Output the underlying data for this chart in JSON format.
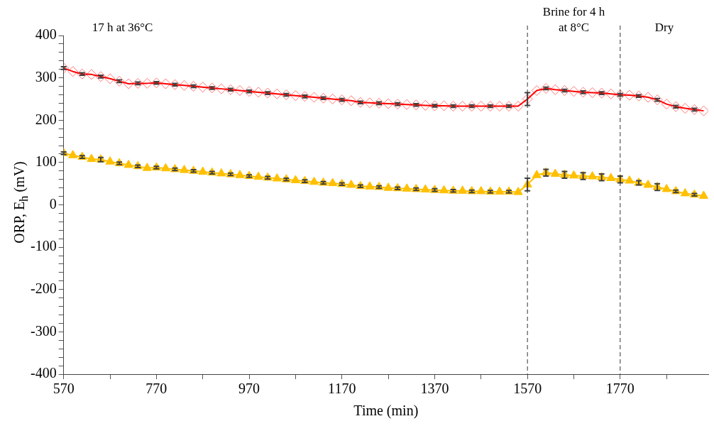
{
  "chart_data": {
    "type": "line",
    "xlabel": "Time (min)",
    "ylabel": "ORP, E$_{h}$  (mV)",
    "x": [
      570,
      590,
      610,
      630,
      650,
      670,
      690,
      710,
      730,
      750,
      770,
      790,
      810,
      830,
      850,
      870,
      890,
      910,
      930,
      950,
      970,
      990,
      1010,
      1030,
      1050,
      1070,
      1090,
      1110,
      1130,
      1150,
      1170,
      1190,
      1210,
      1230,
      1250,
      1270,
      1290,
      1310,
      1330,
      1350,
      1370,
      1390,
      1410,
      1430,
      1450,
      1470,
      1490,
      1510,
      1530,
      1550,
      1570,
      1590,
      1610,
      1630,
      1650,
      1670,
      1690,
      1710,
      1730,
      1750,
      1770,
      1790,
      1810,
      1830,
      1850,
      1870,
      1890,
      1910,
      1930,
      1950
    ],
    "series": [
      {
        "color": "#ff0000",
        "marker": "diamond",
        "values": [
          323,
          315,
          309,
          308,
          303,
          298,
          292,
          286,
          287,
          287,
          288,
          286,
          284,
          282,
          280,
          278,
          276,
          274,
          272,
          270,
          268,
          266,
          264,
          262,
          260,
          258,
          256,
          254,
          252,
          250,
          248,
          246,
          242,
          241,
          240,
          239,
          238,
          237,
          236,
          235,
          234,
          234,
          233,
          233,
          233,
          233,
          233,
          233,
          233,
          233,
          250,
          270,
          275,
          272,
          270,
          268,
          266,
          265,
          264,
          262,
          260,
          259,
          257,
          254,
          248,
          238,
          232,
          228,
          225,
          222
        ],
        "errors": [
          3,
          null,
          3,
          null,
          3,
          null,
          3,
          null,
          3,
          null,
          3,
          null,
          3,
          null,
          3,
          null,
          3,
          null,
          3,
          null,
          3,
          null,
          3,
          null,
          3,
          null,
          3,
          null,
          3,
          null,
          3,
          null,
          3,
          null,
          3,
          null,
          3,
          null,
          3,
          null,
          3,
          null,
          3,
          null,
          3,
          null,
          3,
          null,
          3,
          null,
          15,
          null,
          3,
          null,
          3,
          null,
          3,
          null,
          3,
          null,
          3,
          null,
          3,
          null,
          3,
          null,
          3,
          null,
          3,
          null
        ]
      },
      {
        "color": "#ffc000",
        "marker": "triangle",
        "values": [
          122,
          117,
          113,
          108,
          107,
          102,
          98,
          94,
          91,
          87,
          88,
          86,
          84,
          82,
          80,
          78,
          76,
          74,
          72,
          70,
          68,
          66,
          64,
          62,
          60,
          58,
          56,
          54,
          52,
          51,
          49,
          47,
          44,
          43,
          42,
          40,
          39,
          38,
          37,
          36,
          35,
          34,
          33,
          33,
          32,
          32,
          31,
          31,
          31,
          30,
          48,
          70,
          76,
          73,
          71,
          69,
          68,
          67,
          65,
          63,
          60,
          57,
          52,
          47,
          42,
          37,
          32,
          27,
          24,
          21
        ],
        "errors": [
          3,
          null,
          3,
          null,
          5,
          null,
          3,
          null,
          3,
          null,
          3,
          null,
          3,
          null,
          3,
          null,
          3,
          null,
          3,
          null,
          3,
          null,
          3,
          null,
          3,
          null,
          3,
          null,
          3,
          null,
          3,
          null,
          3,
          null,
          3,
          null,
          3,
          null,
          3,
          null,
          3,
          null,
          3,
          null,
          3,
          null,
          3,
          null,
          3,
          null,
          15,
          null,
          8,
          null,
          8,
          null,
          8,
          null,
          8,
          null,
          8,
          null,
          5,
          null,
          8,
          null,
          3,
          null,
          3,
          null
        ]
      }
    ],
    "xlim": [
      570,
      1960
    ],
    "xticks": [
      570,
      {
        "value": 670,
        "label": null
      },
      770,
      {
        "value": 870,
        "label": null
      },
      970,
      {
        "value": 1070,
        "label": null
      },
      1170,
      {
        "value": 1270,
        "label": null
      },
      1370,
      {
        "value": 1470,
        "label": null
      },
      1570,
      {
        "value": 1670,
        "label": null
      },
      1770,
      {
        "value": 1870,
        "label": null
      }
    ],
    "ylim": [
      -400,
      400
    ],
    "yticks": [
      -400,
      {
        "value": -380,
        "label": null
      },
      {
        "value": -360,
        "label": null
      },
      {
        "value": -340,
        "label": null
      },
      {
        "value": -320,
        "label": null
      },
      -300,
      {
        "value": -280,
        "label": null
      },
      {
        "value": -260,
        "label": null
      },
      {
        "value": -240,
        "label": null
      },
      {
        "value": -220,
        "label": null
      },
      -200,
      {
        "value": -180,
        "label": null
      },
      {
        "value": -160,
        "label": null
      },
      {
        "value": -140,
        "label": null
      },
      {
        "value": -120,
        "label": null
      },
      -100,
      {
        "value": -80,
        "label": null
      },
      {
        "value": -60,
        "label": null
      },
      {
        "value": -40,
        "label": null
      },
      {
        "value": -20,
        "label": null
      },
      0,
      {
        "value": 20,
        "label": null
      },
      {
        "value": 40,
        "label": null
      },
      {
        "value": 60,
        "label": null
      },
      {
        "value": 80,
        "label": null
      },
      100,
      {
        "value": 120,
        "label": null
      },
      {
        "value": 140,
        "label": null
      },
      {
        "value": 160,
        "label": null
      },
      {
        "value": 180,
        "label": null
      },
      200,
      {
        "value": 220,
        "label": null
      },
      {
        "value": 240,
        "label": null
      },
      {
        "value": 260,
        "label": null
      },
      {
        "value": 280,
        "label": null
      },
      300,
      {
        "value": 320,
        "label": null
      },
      {
        "value": 340,
        "label": null
      },
      {
        "value": 360,
        "label": null
      },
      {
        "value": 380,
        "label": null
      },
      400
    ],
    "grid": false,
    "line_style": "solid",
    "ref_lines": [
      {
        "axis": "x",
        "value": 1570,
        "color": "#333333",
        "line_style": "dashed"
      },
      {
        "axis": "x",
        "value": 1770,
        "color": "#333333",
        "line_style": "dashed"
      }
    ],
    "annotations": [
      "17 h at 36°C",
      "Brine for 4 h\nat 8°C",
      "Dry"
    ]
  }
}
